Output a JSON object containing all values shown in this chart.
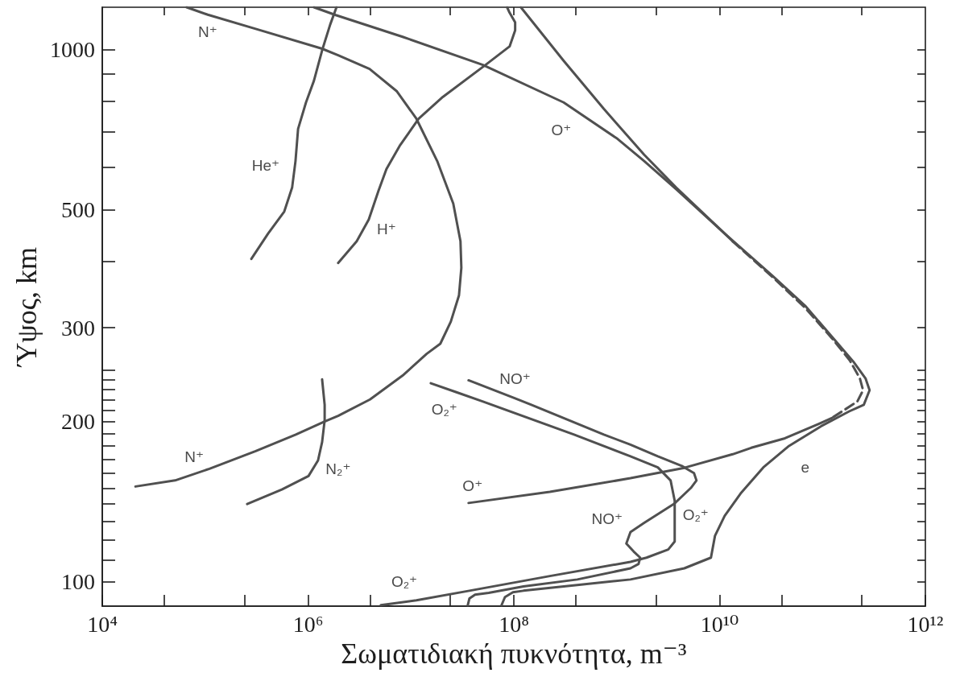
{
  "chart_data": {
    "type": "line",
    "xlabel": "Σωματιδιακή πυκνότητα, m⁻³",
    "ylabel": "Ύψος, km",
    "log": "xy",
    "xlim": [
      10000.0,
      1000000000000.0
    ],
    "ylim": [
      90,
      1200
    ],
    "xticks": [
      {
        "value": 10000.0,
        "label": "10⁴"
      },
      {
        "value": 40000.0,
        "label": null
      },
      {
        "value": 240000.0,
        "label": null
      },
      {
        "value": 1000000.0,
        "label": "10⁶"
      },
      {
        "value": 4000000.0,
        "label": null
      },
      {
        "value": 24000000.0,
        "label": null
      },
      {
        "value": 100000000.0,
        "label": "10⁸"
      },
      {
        "value": 400000000.0,
        "label": null
      },
      {
        "value": 2400000000.0,
        "label": null
      },
      {
        "value": 10000000000.0,
        "label": "10¹⁰"
      },
      {
        "value": 40000000000.0,
        "label": null
      },
      {
        "value": 240000000000.0,
        "label": null
      },
      {
        "value": 1000000000000.0,
        "label": "10¹²"
      }
    ],
    "yticks": [
      100,
      {
        "value": 110,
        "label": null
      },
      {
        "value": 120,
        "label": null
      },
      {
        "value": 130,
        "label": null
      },
      {
        "value": 140,
        "label": null
      },
      {
        "value": 150,
        "label": null
      },
      {
        "value": 160,
        "label": null
      },
      {
        "value": 170,
        "label": null
      },
      {
        "value": 180,
        "label": null
      },
      {
        "value": 190,
        "label": null
      },
      200,
      {
        "value": 210,
        "label": null
      },
      {
        "value": 220,
        "label": null
      },
      {
        "value": 230,
        "label": null
      },
      {
        "value": 240,
        "label": null
      },
      {
        "value": 250,
        "label": null
      },
      300,
      {
        "value": 400,
        "label": null
      },
      500,
      {
        "value": 600,
        "label": null
      },
      {
        "value": 700,
        "label": null
      },
      {
        "value": 800,
        "label": null
      },
      {
        "value": 900,
        "label": null
      },
      1000
    ],
    "series": [
      {
        "color": "#505050",
        "x": [
          21000.0,
          51000.0,
          110000.0,
          310000.0,
          760000.0,
          1450000.0,
          1960000.0,
          4000000.0,
          8300000.0,
          14200000.0,
          19300000.0,
          24400000.0,
          29300000.0,
          30900000.0,
          30300000.0,
          25800000.0,
          18000000.0,
          11300000.0,
          7310000.0,
          3960000.0,
          1960000.0,
          1370000.0,
          310000.0,
          106000.0,
          66000.0
        ],
        "values": [
          151,
          155,
          163,
          176,
          189,
          200,
          205,
          220,
          244,
          268,
          280,
          308,
          345,
          389,
          436,
          513,
          617,
          741,
          834,
          919,
          975,
          1003,
          1093,
          1162,
          1200
        ]
      },
      {
        "color": "#505050",
        "x": [
          281000.0,
          409000.0,
          587000.0,
          700000.0,
          755000.0,
          800000.0,
          955000.0,
          1140000.0,
          1370000.0,
          1640000.0,
          1890000.0
        ],
        "values": [
          404,
          451,
          496,
          550,
          617,
          709,
          795,
          873,
          996,
          1113,
          1200
        ]
      },
      {
        "color": "#505050",
        "x": [
          1960000.0,
          2970000.0,
          3890000.0,
          4830000.0,
          5780000.0,
          7850000.0,
          11900000.0,
          20400000.0,
          53100000.0,
          91000000.0,
          103000000.0,
          103000000.0,
          91000000.0,
          86000000.0
        ],
        "values": [
          397,
          436,
          479,
          542,
          596,
          661,
          741,
          814,
          935,
          1013,
          1086,
          1124,
          1172,
          1200
        ]
      },
      {
        "color": "#505050",
        "x": [
          1140000.0,
          1860000.0,
          8300000.0,
          50000000.0,
          305000000.0,
          1020000000.0,
          1850000000.0,
          3790000000.0,
          11200000000.0,
          13400000000.0
        ],
        "values": [
          1200,
          1160,
          1056,
          935,
          795,
          679,
          617,
          546,
          451,
          436
        ]
      },
      {
        "color": "#505050",
        "line_style": "dashed",
        "x": [
          13400000000.0,
          33000000000.0,
          67800000000.0,
          123000000000.0,
          183000000000.0,
          231000000000.0,
          248000000000.0,
          218000000000.0,
          123000000000.0
        ],
        "values": [
          436,
          373,
          327,
          287,
          261,
          241,
          229,
          218,
          203
        ]
      },
      {
        "color": "#505050",
        "x": [
          123000000000.0,
          92000000000.0,
          43200000000.0,
          20300000000.0,
          13400000000.0,
          4540000000.0,
          1360000000.0,
          224000000.0,
          36300000.0
        ],
        "values": [
          203,
          198,
          186,
          178.5,
          173.6,
          163.7,
          156.5,
          147.5,
          140.6
        ]
      },
      {
        "color": "#505050",
        "x": [
          117000000.0,
          305000000.0,
          750000000.0,
          1850000000.0,
          3790000000.0,
          11200000000.0,
          33000000000.0,
          67800000000.0,
          123000000000.0,
          200000000000.0,
          262000000000.0,
          287000000000.0,
          252000000000.0,
          182000000000.0,
          97100000000.0,
          47300000000.0,
          26600000000.0,
          16000000000.0,
          11200000000.0,
          9020000000.0,
          8240000000.0,
          4540000000.0,
          1360000000.0,
          414000000.0,
          124000000.0,
          98000000.0,
          82000000.0,
          76000000.0
        ],
        "values": [
          1200,
          952,
          773,
          634,
          550,
          451,
          375,
          330,
          289,
          259,
          241,
          229,
          215,
          209,
          196,
          180,
          164,
          146.5,
          133,
          122,
          111,
          106,
          101,
          98.6,
          96.2,
          95.6,
          93.6,
          90.4
        ]
      },
      {
        "color": "#505050",
        "x": [
          36300000.0,
          103000000.0,
          148000000.0,
          750000000.0,
          1360000000.0,
          2510000000.0,
          4300000000.0,
          5640000000.0,
          5960000000.0,
          5250000000.0,
          3600000000.0,
          1850000000.0,
          1360000000.0,
          1240000000.0,
          1460000000.0,
          1690000000.0,
          1630000000.0,
          1360000000.0,
          414000000.0,
          124000000.0,
          57000000.0,
          42000000.0,
          37000000.0,
          35700000.0
        ],
        "values": [
          239,
          221,
          215,
          189,
          181,
          172,
          165,
          160,
          155,
          150,
          140,
          129,
          124,
          118,
          114,
          111,
          108,
          106,
          101,
          98,
          95.3,
          94.6,
          93,
          90.4
        ]
      },
      {
        "color": "#505050",
        "x": [
          15600000.0,
          27700000.0,
          50200000.0,
          385000000.0,
          1360000000.0,
          2510000000.0,
          3340000000.0,
          3660000000.0,
          3660000000.0,
          3660000000.0,
          3170000000.0,
          1950000000.0,
          1360000000.0,
          224000000.0,
          37000000.0,
          11300000.0,
          5100000.0
        ],
        "values": [
          236,
          227,
          218,
          189,
          172,
          164,
          155,
          142,
          134,
          119,
          115,
          111,
          109,
          102.5,
          96.2,
          92.3,
          90.4
        ]
      },
      {
        "color": "#505050",
        "x": [
          256000.0,
          556000.0,
          1010000.0,
          1250000.0,
          1370000.0,
          1450000.0,
          1450000.0,
          1370000.0
        ],
        "values": [
          140,
          149,
          158,
          169,
          183,
          201,
          215,
          240
        ]
      }
    ],
    "annotations": [
      {
        "text": "N⁺",
        "x": 106000.0,
        "y": 1162
      },
      {
        "text": "He⁺",
        "x": 755000.0,
        "y": 617
      },
      {
        "text": "H⁺",
        "x": 3890000.0,
        "y": 479
      },
      {
        "text": "O⁺",
        "x": 305000000.0,
        "y": 795
      },
      {
        "text": "N⁺",
        "x": 110000.0,
        "y": 163
      },
      {
        "text": "O₂⁺",
        "x": 27700000.0,
        "y": 227
      },
      {
        "text": "NO⁺",
        "x": 103000000.0,
        "y": 221
      },
      {
        "text": "N₂⁺",
        "x": 1250000.0,
        "y": 169
      },
      {
        "text": "O⁺",
        "x": 36300000.0,
        "y": 140.6
      },
      {
        "text": "e",
        "x": 47300000000.0,
        "y": 180
      },
      {
        "text": "NO⁺",
        "x": 1850000000.0,
        "y": 129
      },
      {
        "text": "O₂⁺",
        "x": 3660000000.0,
        "y": 134
      },
      {
        "text": "O₂⁺",
        "x": 11300000.0,
        "y": 92.3
      }
    ]
  }
}
